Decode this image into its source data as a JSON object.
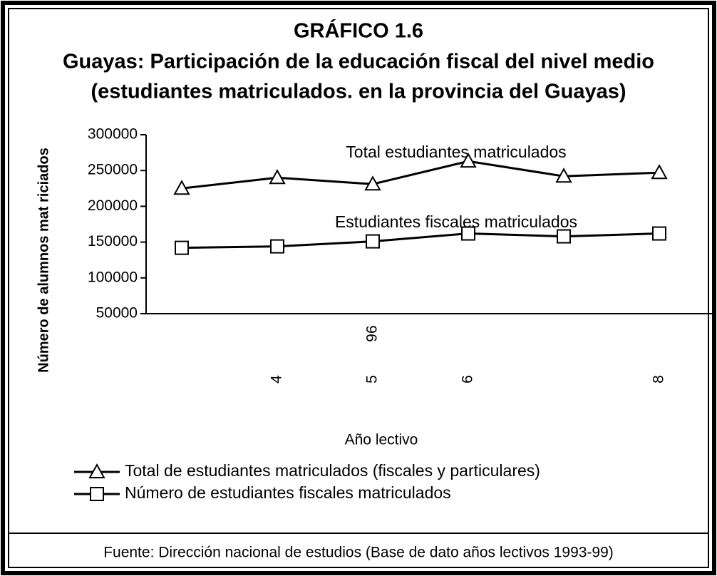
{
  "chart_data": {
    "type": "line",
    "title": "GRÁFICO 1.6",
    "subtitle": [
      "Guayas: Participación de la educación fiscal del nivel medio",
      "(estudiantes matriculados. en la provincia del Guayas)"
    ],
    "ylabel": "Número de alumnos mat riciados",
    "xlabel": "Año lectivo",
    "categories": [
      null,
      "4",
      "5",
      "6",
      null,
      "8"
    ],
    "category_note": "96",
    "series": [
      {
        "name": "Total de estudiantes matriculados (fiscales y particulares)",
        "color": "#000000",
        "marker": "triangle",
        "values": [
          225000,
          240000,
          231000,
          263000,
          242000,
          247000
        ]
      },
      {
        "name": "Número de estudiantes fiscales matriculados",
        "color": "#000000",
        "marker": "square",
        "values": [
          142000,
          144000,
          151000,
          162000,
          158000,
          162000
        ]
      }
    ],
    "annotations": [
      "Total estudiantes matriculados",
      "Estudiantes fiscales matriculados"
    ],
    "ylim": [
      50000,
      300000
    ],
    "yticks": [
      50000,
      100000,
      150000,
      200000,
      250000,
      300000
    ],
    "source": "Fuente: Dirección nacional de estudios (Base de dato años lectivos 1993-99)"
  }
}
